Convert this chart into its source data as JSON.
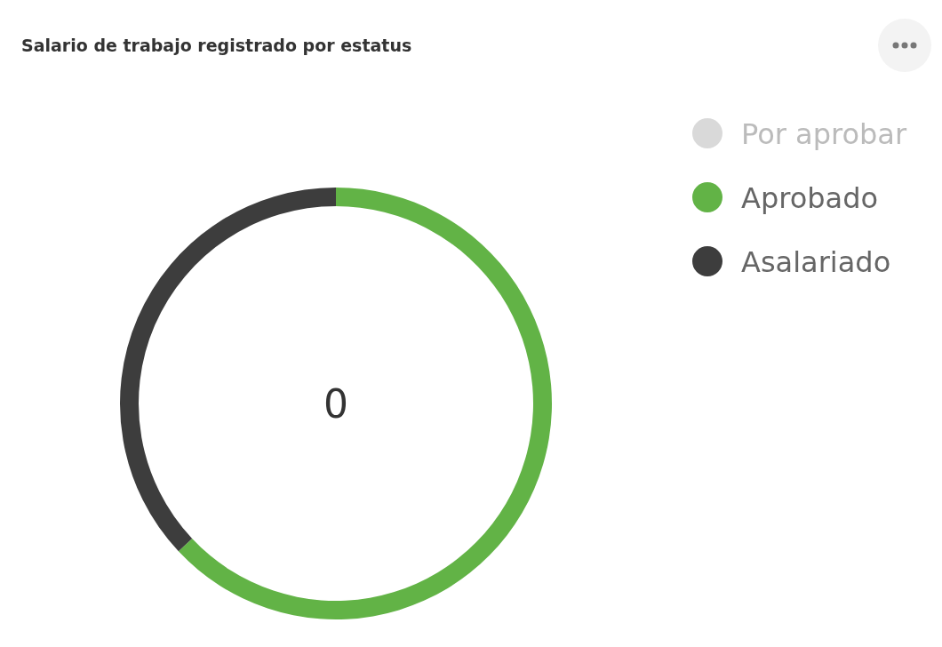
{
  "chart_data": {
    "type": "donut",
    "title": "Salario de trabajo registrado por estatus",
    "categories": [
      "Por aprobar",
      "Aprobado",
      "Asalariado"
    ],
    "values": [
      0,
      63,
      37
    ],
    "colors": [
      "#d9d9d9",
      "#62b346",
      "#3d3d3d"
    ],
    "annotations": [
      "0"
    ],
    "legend": "top right"
  }
}
